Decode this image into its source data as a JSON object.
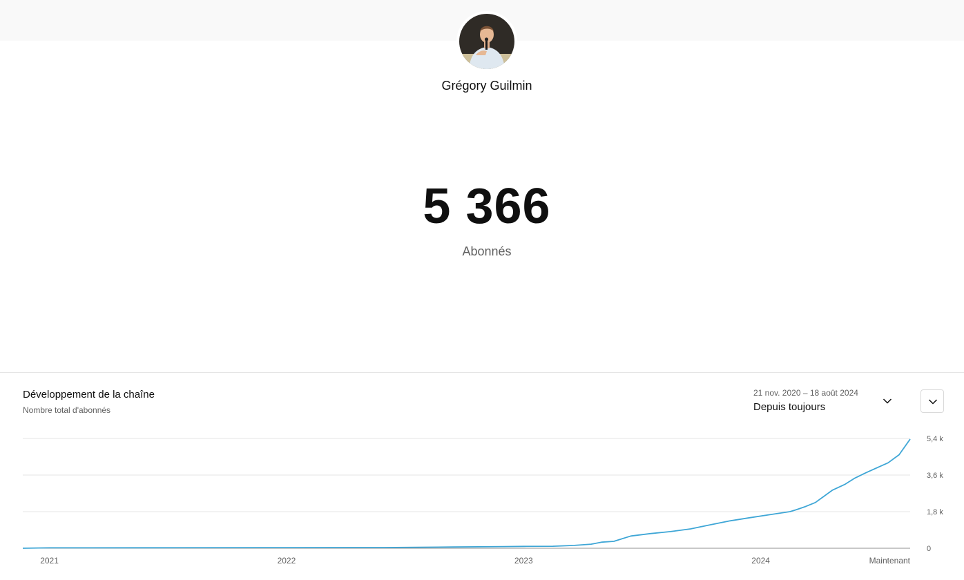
{
  "channel": {
    "name": "Grégory Guilmin",
    "subscriber_count": "5 366",
    "subscriber_label": "Abonnés"
  },
  "card": {
    "title": "Développement de la chaîne",
    "subtitle": "Nombre total d'abonnés",
    "date_range": "21 nov. 2020 – 18 août 2024",
    "period_label": "Depuis toujours"
  },
  "icons": {
    "range_dropdown": "chevron-down-icon",
    "expand": "chevron-down-icon"
  },
  "colors": {
    "series_line": "#3ea6d6",
    "gridline": "#e5e5e5",
    "baseline": "#909090",
    "axis_text": "#606060"
  },
  "chart_data": {
    "type": "line",
    "x_type": "date",
    "x_range": [
      "2020-11-21",
      "2024-08-18"
    ],
    "ylim": [
      0,
      5400
    ],
    "y_ticks": [
      0,
      1800,
      3600,
      5400
    ],
    "y_tick_labels": [
      "0",
      "1,8 k",
      "3,6 k",
      "5,4 k"
    ],
    "x_ticks": [
      "2021-01-01",
      "2022-01-01",
      "2023-01-01",
      "2024-01-01",
      "2024-08-18"
    ],
    "x_tick_labels": [
      "2021",
      "2022",
      "2023",
      "2024",
      "Maintenant"
    ],
    "grid": true,
    "y_axis_position": "right",
    "series": [
      {
        "x": [
          "2020-11-21",
          "2021-01-01",
          "2021-06-01",
          "2022-01-01",
          "2022-06-01",
          "2022-09-15",
          "2022-12-01",
          "2023-01-01",
          "2023-02-15",
          "2023-03-20",
          "2023-04-15",
          "2023-05-01",
          "2023-05-20",
          "2023-06-15",
          "2023-07-15",
          "2023-08-15",
          "2023-09-15",
          "2023-10-15",
          "2023-11-15",
          "2023-12-15",
          "2024-01-15",
          "2024-02-15",
          "2024-02-25",
          "2024-03-10",
          "2024-03-25",
          "2024-04-05",
          "2024-04-20",
          "2024-05-10",
          "2024-05-25",
          "2024-06-10",
          "2024-07-01",
          "2024-07-15",
          "2024-08-01",
          "2024-08-18"
        ],
        "y": [
          0,
          20,
          25,
          30,
          35,
          60,
          80,
          90,
          100,
          140,
          200,
          300,
          340,
          600,
          720,
          820,
          950,
          1150,
          1350,
          1500,
          1650,
          1800,
          1900,
          2050,
          2250,
          2500,
          2850,
          3150,
          3450,
          3700,
          4000,
          4200,
          4600,
          5366
        ]
      }
    ]
  }
}
